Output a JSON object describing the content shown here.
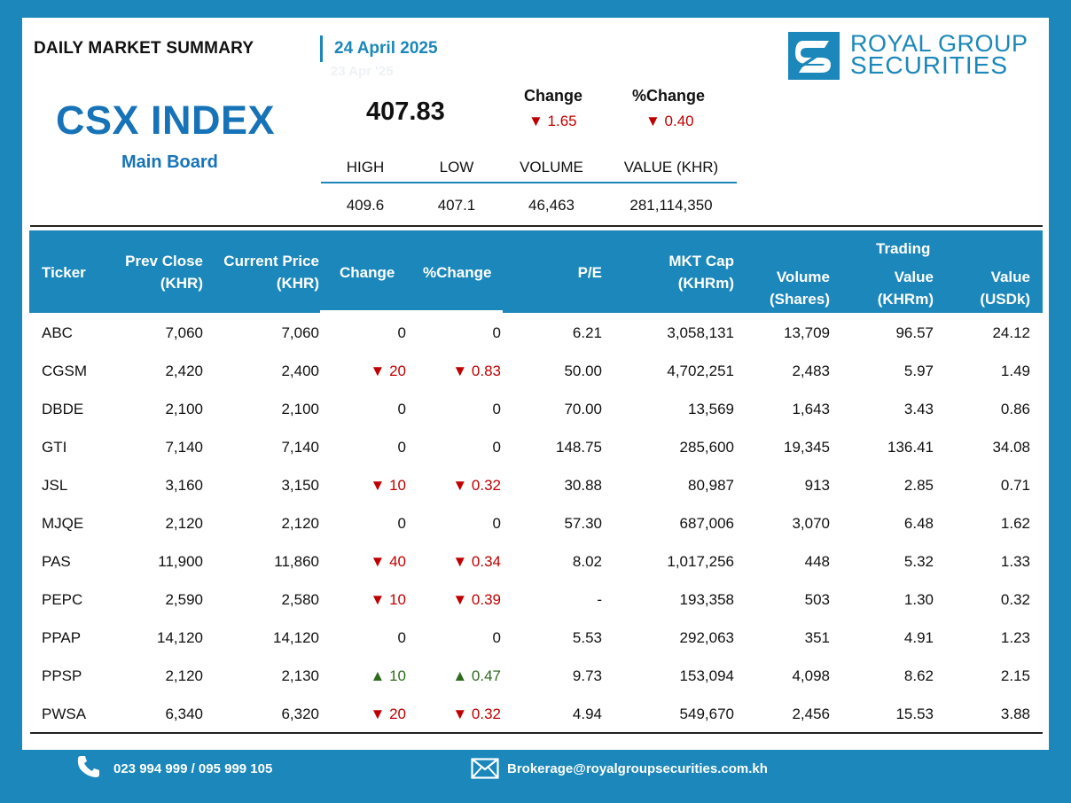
{
  "header": {
    "title": "DAILY MARKET SUMMARY",
    "date": "24 April 2025",
    "ghost_date": "23 Apr '25"
  },
  "brand": {
    "logo_line1": "ROYAL GROUP",
    "logo_line2": "SECURITIES",
    "color": "#1b87ba"
  },
  "index": {
    "name": "CSX INDEX",
    "board": "Main Board",
    "value": "407.83",
    "change_label": "Change",
    "change_value": "▼ 1.65",
    "pct_change_label": "%Change",
    "pct_change_value": "▼ 0.40",
    "stats_headers": [
      "HIGH",
      "LOW",
      "VOLUME",
      "VALUE (KHR)"
    ],
    "stats_values": [
      "409.6",
      "407.1",
      "46,463",
      "281,114,350"
    ]
  },
  "table": {
    "headers": {
      "ticker": "Ticker",
      "prev_close_1": "Prev Close",
      "prev_close_2": "(KHR)",
      "current_price_1": "Current Price",
      "current_price_2": "(KHR)",
      "change": "Change",
      "pct_change": "%Change",
      "pe": "P/E",
      "mkt_cap_1": "MKT Cap",
      "mkt_cap_2": "(KHRm)",
      "volume_1": "Volume",
      "volume_2": "(Shares)",
      "trading": "Trading",
      "value_khr_1": "Value",
      "value_khr_2": "(KHRm)",
      "value_usd_1": "Value",
      "value_usd_2": "(USDk)"
    },
    "rows": [
      {
        "ticker": "ABC",
        "prev": "7,060",
        "cur": "7,060",
        "chg": "0",
        "pct": "0",
        "dir": "flat",
        "pe": "6.21",
        "cap": "3,058,131",
        "vol": "13,709",
        "val_khr": "96.57",
        "val_usd": "24.12"
      },
      {
        "ticker": "CGSM",
        "prev": "2,420",
        "cur": "2,400",
        "chg": "▼ 20",
        "pct": "▼ 0.83",
        "dir": "down",
        "pe": "50.00",
        "cap": "4,702,251",
        "vol": "2,483",
        "val_khr": "5.97",
        "val_usd": "1.49"
      },
      {
        "ticker": "DBDE",
        "prev": "2,100",
        "cur": "2,100",
        "chg": "0",
        "pct": "0",
        "dir": "flat",
        "pe": "70.00",
        "cap": "13,569",
        "vol": "1,643",
        "val_khr": "3.43",
        "val_usd": "0.86"
      },
      {
        "ticker": "GTI",
        "prev": "7,140",
        "cur": "7,140",
        "chg": "0",
        "pct": "0",
        "dir": "flat",
        "pe": "148.75",
        "cap": "285,600",
        "vol": "19,345",
        "val_khr": "136.41",
        "val_usd": "34.08"
      },
      {
        "ticker": "JSL",
        "prev": "3,160",
        "cur": "3,150",
        "chg": "▼ 10",
        "pct": "▼ 0.32",
        "dir": "down",
        "pe": "30.88",
        "cap": "80,987",
        "vol": "913",
        "val_khr": "2.85",
        "val_usd": "0.71"
      },
      {
        "ticker": "MJQE",
        "prev": "2,120",
        "cur": "2,120",
        "chg": "0",
        "pct": "0",
        "dir": "flat",
        "pe": "57.30",
        "cap": "687,006",
        "vol": "3,070",
        "val_khr": "6.48",
        "val_usd": "1.62"
      },
      {
        "ticker": "PAS",
        "prev": "11,900",
        "cur": "11,860",
        "chg": "▼ 40",
        "pct": "▼ 0.34",
        "dir": "down",
        "pe": "8.02",
        "cap": "1,017,256",
        "vol": "448",
        "val_khr": "5.32",
        "val_usd": "1.33"
      },
      {
        "ticker": "PEPC",
        "prev": "2,590",
        "cur": "2,580",
        "chg": "▼ 10",
        "pct": "▼ 0.39",
        "dir": "down",
        "pe": "-",
        "cap": "193,358",
        "vol": "503",
        "val_khr": "1.30",
        "val_usd": "0.32"
      },
      {
        "ticker": "PPAP",
        "prev": "14,120",
        "cur": "14,120",
        "chg": "0",
        "pct": "0",
        "dir": "flat",
        "pe": "5.53",
        "cap": "292,063",
        "vol": "351",
        "val_khr": "4.91",
        "val_usd": "1.23"
      },
      {
        "ticker": "PPSP",
        "prev": "2,120",
        "cur": "2,130",
        "chg": "▲ 10",
        "pct": "▲ 0.47",
        "dir": "up",
        "pe": "9.73",
        "cap": "153,094",
        "vol": "4,098",
        "val_khr": "8.62",
        "val_usd": "2.15"
      },
      {
        "ticker": "PWSA",
        "prev": "6,340",
        "cur": "6,320",
        "chg": "▼ 20",
        "pct": "▼ 0.32",
        "dir": "down",
        "pe": "4.94",
        "cap": "549,670",
        "vol": "2,456",
        "val_khr": "15.53",
        "val_usd": "3.88"
      }
    ]
  },
  "footer": {
    "phone": "023 994 999 / 095 999 105",
    "email": "Brokerage@royalgroupsecurities.com.kh",
    "phone_icon": "phone-icon",
    "email_icon": "envelope-icon"
  },
  "colors": {
    "accent": "#1b87ba",
    "index_blue": "#1673b8",
    "down": "#c00000",
    "up": "#2e6b1e"
  }
}
